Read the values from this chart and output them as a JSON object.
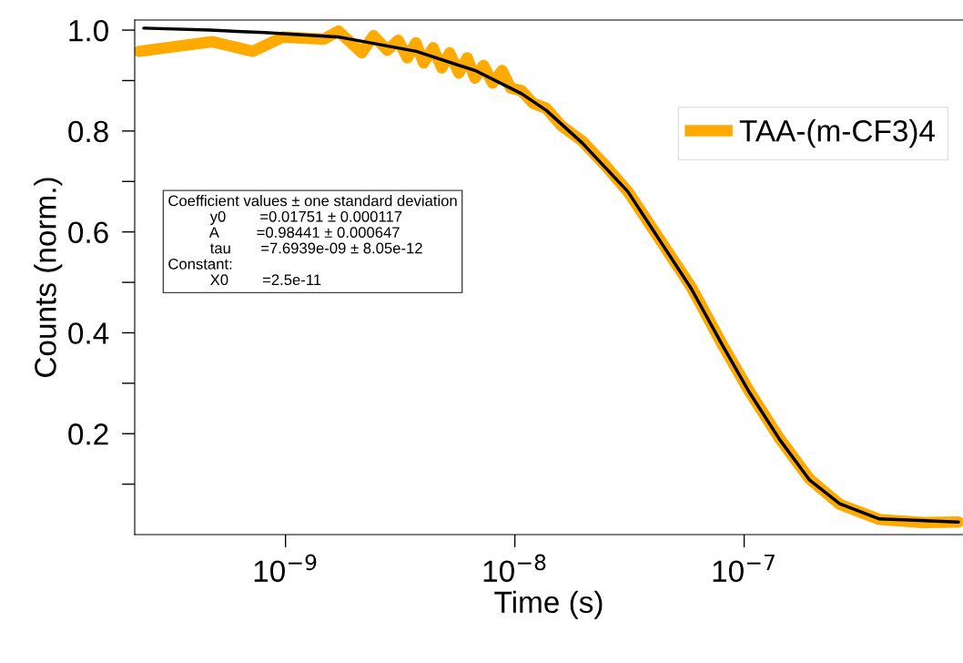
{
  "chart_data": {
    "type": "line",
    "xlabel": "Time (s)",
    "ylabel": "Counts (norm.)",
    "log": "x",
    "grid": false,
    "legend": "top right",
    "marker": "none",
    "xlim": [
      2.2e-10,
      9e-07
    ],
    "xticks": [
      {
        "value": 1e-09,
        "label": "10$^{−9}$"
      },
      {
        "value": 1e-08,
        "label": "10$^{−8}$"
      },
      {
        "value": 1e-07,
        "label": "10$^{−7}$"
      }
    ],
    "ylim": [
      0,
      1.02
    ],
    "yticks": [
      {
        "value": 0.1,
        "label": null
      },
      0.2,
      {
        "value": 0.3,
        "label": null
      },
      0.4,
      {
        "value": 0.5,
        "label": null
      },
      0.6,
      {
        "value": 0.7,
        "label": null
      },
      0.8,
      {
        "value": 0.9,
        "label": null
      },
      {
        "value": 1.0,
        "label": "1.0"
      }
    ],
    "series": [
      {
        "name": "TAA-(m-CF3)4",
        "color": "#ffaa00",
        "x": [
          2.3e-10,
          4.8e-10,
          7.2e-10,
          9.7e-10,
          1.47e-09,
          1.7e-09,
          2.15e-09,
          2.42e-09,
          2.78e-09,
          3.1e-09,
          3.4e-09,
          3.7e-09,
          4e-09,
          4.4e-09,
          4.8e-09,
          5.2e-09,
          5.7e-09,
          6.2e-09,
          6.7e-09,
          7.3e-09,
          8e-09,
          8.8e-09,
          9.6e-09,
          1.07e-08,
          1.2e-08,
          1.37e-08,
          1.6e-08,
          1.97e-08,
          2.5e-08,
          3.11e-08,
          4.36e-08,
          5.89e-08,
          7.96e-08,
          1.05e-07,
          1.43e-07,
          1.93e-07,
          2.61e-07,
          3.89e-07,
          6e-07,
          8.6e-07
        ],
        "values": [
          0.958,
          0.977,
          0.958,
          0.986,
          0.982,
          0.998,
          0.955,
          0.989,
          0.96,
          0.98,
          0.945,
          0.975,
          0.935,
          0.965,
          0.925,
          0.955,
          0.915,
          0.945,
          0.905,
          0.93,
          0.895,
          0.92,
          0.885,
          0.88,
          0.855,
          0.845,
          0.81,
          0.78,
          0.73,
          0.68,
          0.58,
          0.49,
          0.38,
          0.285,
          0.19,
          0.11,
          0.06,
          0.03,
          0.024,
          0.025
        ]
      },
      {
        "color": "#000000",
        "x": [
          2.41e-10,
          4.69e-10,
          8.11e-10,
          1.73e-09,
          3.72e-09,
          6.79e-09,
          1.07e-08,
          1.37e-08,
          1.97e-08,
          3.11e-08,
          4.36e-08,
          5.89e-08,
          7.96e-08,
          1.05e-07,
          1.43e-07,
          1.93e-07,
          2.61e-07,
          3.89e-07,
          8.6e-07
        ],
        "values": [
          1.004,
          1.0,
          0.995,
          0.986,
          0.958,
          0.919,
          0.874,
          0.841,
          0.776,
          0.68,
          0.578,
          0.487,
          0.379,
          0.283,
          0.188,
          0.108,
          0.061,
          0.031,
          0.025
        ]
      }
    ],
    "annotations": [
      "Coefficient values ± one standard deviation",
      "y0\t=0.01751 ± 0.000117",
      "A\t=0.98441 ± 0.000647",
      "tau\t=7.6939e-09 ± 8.05e-12",
      "Constant:",
      "X0\t=2.5e-11"
    ]
  }
}
